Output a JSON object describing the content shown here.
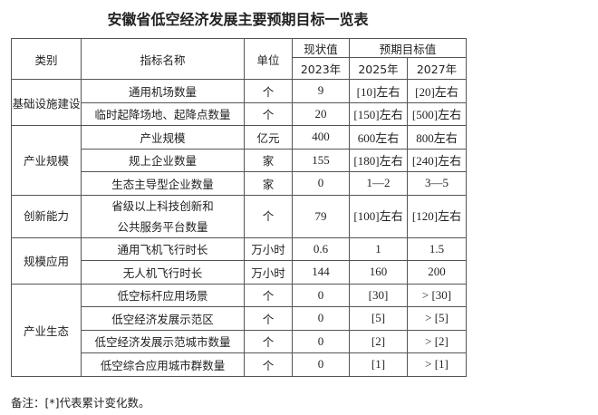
{
  "title": "安徽省低空经济发展主要预期目标一览表",
  "header": {
    "category": "类别",
    "indicator": "指标名称",
    "unit": "单位",
    "current": "现状值",
    "target": "预期目标值",
    "y2023": "2023年",
    "y2025": "2025年",
    "y2027": "2027年"
  },
  "groups": [
    {
      "category": "基础设施建设",
      "rows": [
        {
          "name": "通用机场数量",
          "unit": "个",
          "v2023": "9",
          "v2025": "[10]左右",
          "v2027": "[20]左右"
        },
        {
          "name": "临时起降场地、起降点数量",
          "unit": "个",
          "v2023": "20",
          "v2025": "[150]左右",
          "v2027": "[500]左右"
        }
      ]
    },
    {
      "category": "产业规模",
      "rows": [
        {
          "name": "产业规模",
          "unit": "亿元",
          "v2023": "400",
          "v2025": "600左右",
          "v2027": "800左右"
        },
        {
          "name": "规上企业数量",
          "unit": "家",
          "v2023": "155",
          "v2025": "[180]左右",
          "v2027": "[240]左右"
        },
        {
          "name": "生态主导型企业数量",
          "unit": "家",
          "v2023": "0",
          "v2025": "1—2",
          "v2027": "3—5"
        }
      ]
    },
    {
      "category": "创新能力",
      "rows": [
        {
          "name": "省级以上科技创新和",
          "name2": "公共服务平台数量",
          "unit": "个",
          "v2023": "79",
          "v2025": "[100]左右",
          "v2027": "[120]左右"
        }
      ]
    },
    {
      "category": "规模应用",
      "rows": [
        {
          "name": "通用飞机飞行时长",
          "unit": "万小时",
          "v2023": "0.6",
          "v2025": "1",
          "v2027": "1.5"
        },
        {
          "name": "无人机飞行时长",
          "unit": "万小时",
          "v2023": "144",
          "v2025": "160",
          "v2027": "200"
        }
      ]
    },
    {
      "category": "产业生态",
      "rows": [
        {
          "name": "低空标杆应用场景",
          "unit": "个",
          "v2023": "0",
          "v2025": "[30]",
          "v2027": "> [30]"
        },
        {
          "name": "低空经济发展示范区",
          "unit": "个",
          "v2023": "0",
          "v2025": "[5]",
          "v2027": "> [5]"
        },
        {
          "name": "低空经济发展示范城市数量",
          "unit": "个",
          "v2023": "0",
          "v2025": "[2]",
          "v2027": "> [2]"
        },
        {
          "name": "低空综合应用城市群数量",
          "unit": "个",
          "v2023": "0",
          "v2025": "[1]",
          "v2027": "> [1]"
        }
      ]
    }
  ],
  "note": "备注：[*]代表累计变化数。"
}
